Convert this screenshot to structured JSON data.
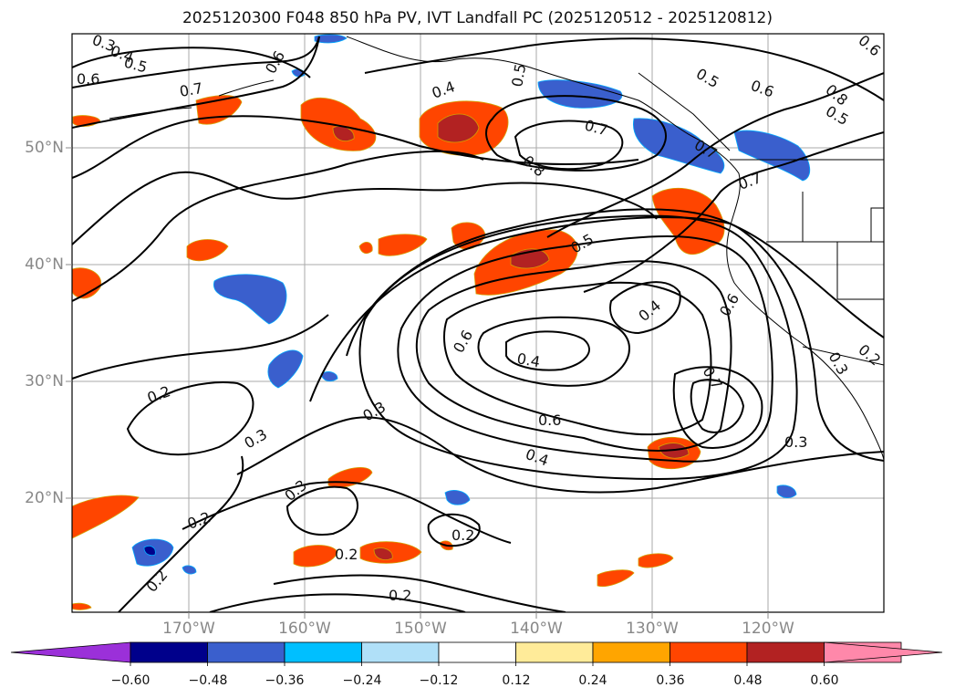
{
  "title": "2025120300 F048 850 hPa PV, IVT Landfall PC (2025120512 - 2025120812)",
  "lat_labels": [
    "50°N",
    "40°N",
    "30°N",
    "20°N"
  ],
  "lon_labels": [
    "170°W",
    "160°W",
    "150°W",
    "140°W",
    "130°W",
    "120°W"
  ],
  "colorbar": {
    "ticks": [
      "−0.60",
      "−0.48",
      "−0.36",
      "−0.24",
      "−0.12",
      "0.12",
      "0.24",
      "0.36",
      "0.48",
      "0.60"
    ],
    "colors": [
      "#9b30d9",
      "#00008b",
      "#3a5fcd",
      "#00bfff",
      "#b0e0f8",
      "#ffffff",
      "#ffeb99",
      "#ffa500",
      "#ff4500",
      "#b22222",
      "#ff88aa",
      "#ff88aa"
    ]
  },
  "contour_labels": [
    "0.3",
    "0.4",
    "0.5",
    "0.6",
    "0.6",
    "0.7",
    "0.4",
    "0.5",
    "0.7",
    "0.8",
    "0.5",
    "0.5",
    "0.6",
    "0.8",
    "0.7",
    "0.7",
    "0.6",
    "0.5",
    "0.6",
    "0.4",
    "0.4",
    "0.6",
    "0.7",
    "0.6",
    "0.4",
    "0.3",
    "0.2",
    "0.3",
    "0.3",
    "0.3",
    "0.2",
    "0.2",
    "0.2",
    "0.2",
    "0.2",
    "0.3",
    "0.2"
  ]
}
